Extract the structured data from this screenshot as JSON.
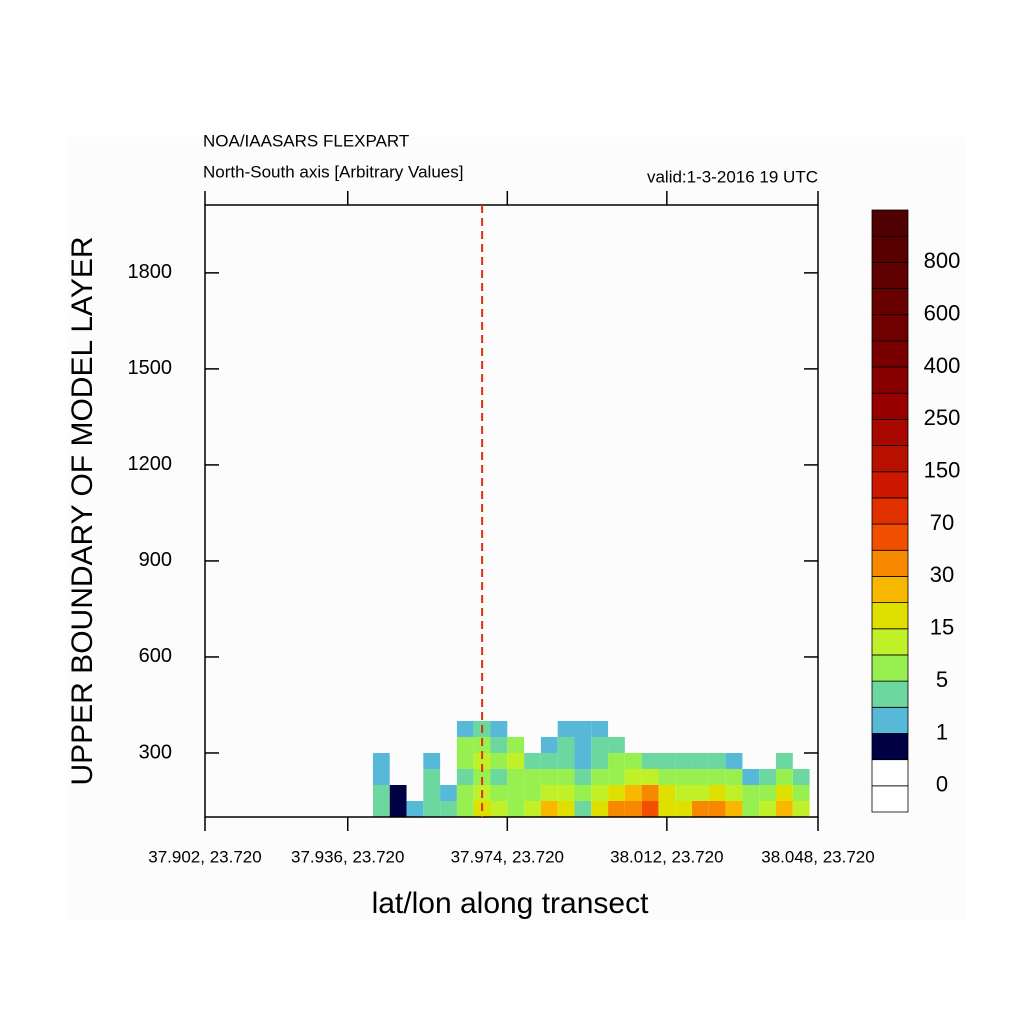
{
  "chart_data": {
    "type": "contour",
    "title": "NOA/IAASARS FLEXPART",
    "subtitle": "North-South axis [Arbitrary Values]",
    "valid_label": "valid:1-3-2016 19 UTC",
    "x_label": "lat/lon along transect",
    "y_label": "UPPER BOUNDARY OF MODEL LAYER",
    "xlim": [
      37.902,
      38.048
    ],
    "ylim": [
      100,
      2012
    ],
    "xticks": [
      {
        "value": 37.902,
        "label": "37.902, 23.720"
      },
      {
        "value": 37.936,
        "label": "37.936, 23.720"
      },
      {
        "value": 37.974,
        "label": "37.974, 23.720"
      },
      {
        "value": 38.012,
        "label": "38.012, 23.720"
      },
      {
        "value": 38.048,
        "label": "38.048, 23.720"
      }
    ],
    "yticks": [
      300,
      600,
      900,
      1200,
      1500,
      1800
    ],
    "marker_x": 37.968,
    "marker_color": "#e03010",
    "levels": [
      0,
      1,
      5,
      15,
      30,
      70,
      150,
      250,
      400,
      600,
      800
    ],
    "colors": [
      "#ffffff",
      "#ffffff",
      "#000044",
      "#58b8d8",
      "#6cd8a0",
      "#98f050",
      "#c0f028",
      "#e0e000",
      "#f8b800",
      "#f88800",
      "#f05000",
      "#e03000",
      "#cc1800",
      "#b81000",
      "#a80800",
      "#980000",
      "#880000",
      "#780000",
      "#700000",
      "#680000",
      "#600000",
      "#580000",
      "#500000"
    ],
    "field": {
      "x": [
        37.944,
        37.948,
        37.952,
        37.956,
        37.96,
        37.964,
        37.968,
        37.972,
        37.976,
        37.98,
        37.984,
        37.988,
        37.992,
        37.996,
        38.0,
        38.004,
        38.008,
        38.012,
        38.016,
        38.02,
        38.024,
        38.028,
        38.032,
        38.036,
        38.04,
        38.044
      ],
      "y": [
        125,
        175,
        225,
        275,
        325,
        375
      ],
      "z": [
        [
          3,
          3,
          2,
          1,
          null,
          null
        ],
        [
          0.5,
          0.5,
          null,
          null,
          null,
          null
        ],
        [
          2,
          null,
          null,
          null,
          null,
          null
        ],
        [
          3,
          4,
          3,
          2,
          null,
          null
        ],
        [
          4,
          2,
          null,
          null,
          null,
          null
        ],
        [
          6,
          5,
          3,
          8,
          6,
          2
        ],
        [
          20,
          12,
          8,
          10,
          6,
          3
        ],
        [
          10,
          6,
          4,
          5,
          3,
          2
        ],
        [
          8,
          6,
          8,
          10,
          6,
          null
        ],
        [
          12,
          8,
          5,
          3,
          null,
          null
        ],
        [
          25,
          14,
          8,
          4,
          2,
          null
        ],
        [
          18,
          10,
          6,
          4,
          3,
          2
        ],
        [
          4,
          6,
          3,
          2,
          2,
          1
        ],
        [
          20,
          12,
          6,
          4,
          3,
          2
        ],
        [
          35,
          20,
          8,
          5,
          3,
          null
        ],
        [
          40,
          25,
          12,
          5,
          null,
          null
        ],
        [
          50,
          30,
          12,
          4,
          null,
          null
        ],
        [
          20,
          15,
          8,
          3,
          null,
          null
        ],
        [
          15,
          10,
          6,
          3,
          null,
          null
        ],
        [
          30,
          14,
          8,
          3,
          null,
          null
        ],
        [
          35,
          20,
          8,
          3,
          null,
          null
        ],
        [
          25,
          12,
          6,
          2,
          null,
          null
        ],
        [
          8,
          5,
          2,
          null,
          null,
          null
        ],
        [
          10,
          6,
          3,
          null,
          null,
          null
        ],
        [
          25,
          15,
          6,
          3,
          null,
          null
        ],
        [
          12,
          6,
          3,
          null,
          null,
          null
        ]
      ]
    }
  }
}
